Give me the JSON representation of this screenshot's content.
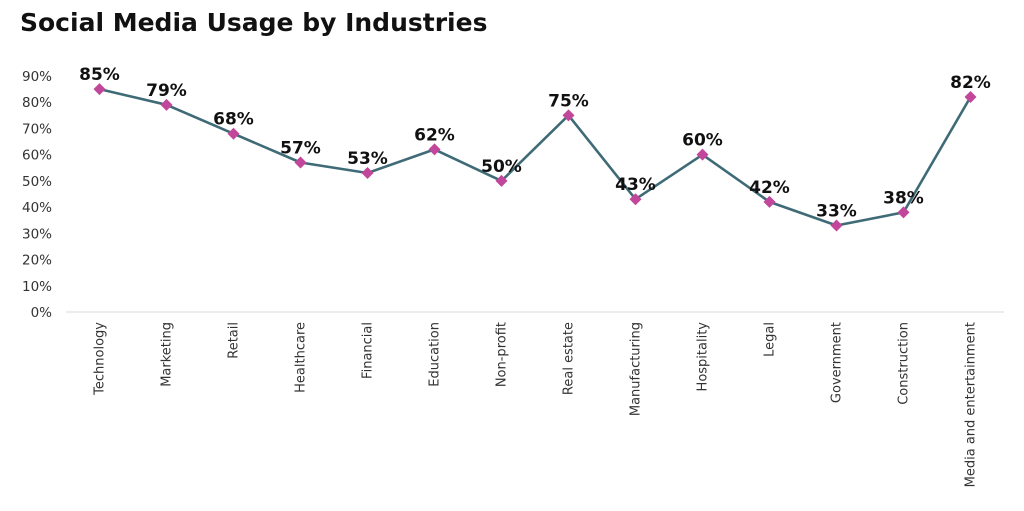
{
  "chart_data": {
    "type": "line",
    "title": "Social Media Usage by Industries",
    "xlabel": "",
    "ylabel": "",
    "categories": [
      "Technology",
      "Marketing",
      "Retail",
      "Healthcare",
      "Financial",
      "Education",
      "Non-profit",
      "Real estate",
      "Manufacturing",
      "Hospitality",
      "Legal",
      "Government",
      "Construction",
      "Media and entertainment"
    ],
    "values": [
      85,
      79,
      68,
      57,
      53,
      62,
      50,
      75,
      43,
      60,
      42,
      33,
      38,
      82
    ],
    "data_labels": [
      "85%",
      "79%",
      "68%",
      "57%",
      "53%",
      "62%",
      "50%",
      "75%",
      "43%",
      "60%",
      "42%",
      "33%",
      "38%",
      "82%"
    ],
    "yticks": [
      0,
      10,
      20,
      30,
      40,
      50,
      60,
      70,
      80,
      90
    ],
    "ytick_labels": [
      "0%",
      "10%",
      "20%",
      "30%",
      "40%",
      "50%",
      "60%",
      "70%",
      "80%",
      "90%"
    ],
    "ylim": [
      0,
      90
    ],
    "grid": false,
    "legend": "none",
    "colors": {
      "line": "#3f6b77",
      "marker": "#c2479a",
      "axis": "#d9d9d9"
    }
  }
}
